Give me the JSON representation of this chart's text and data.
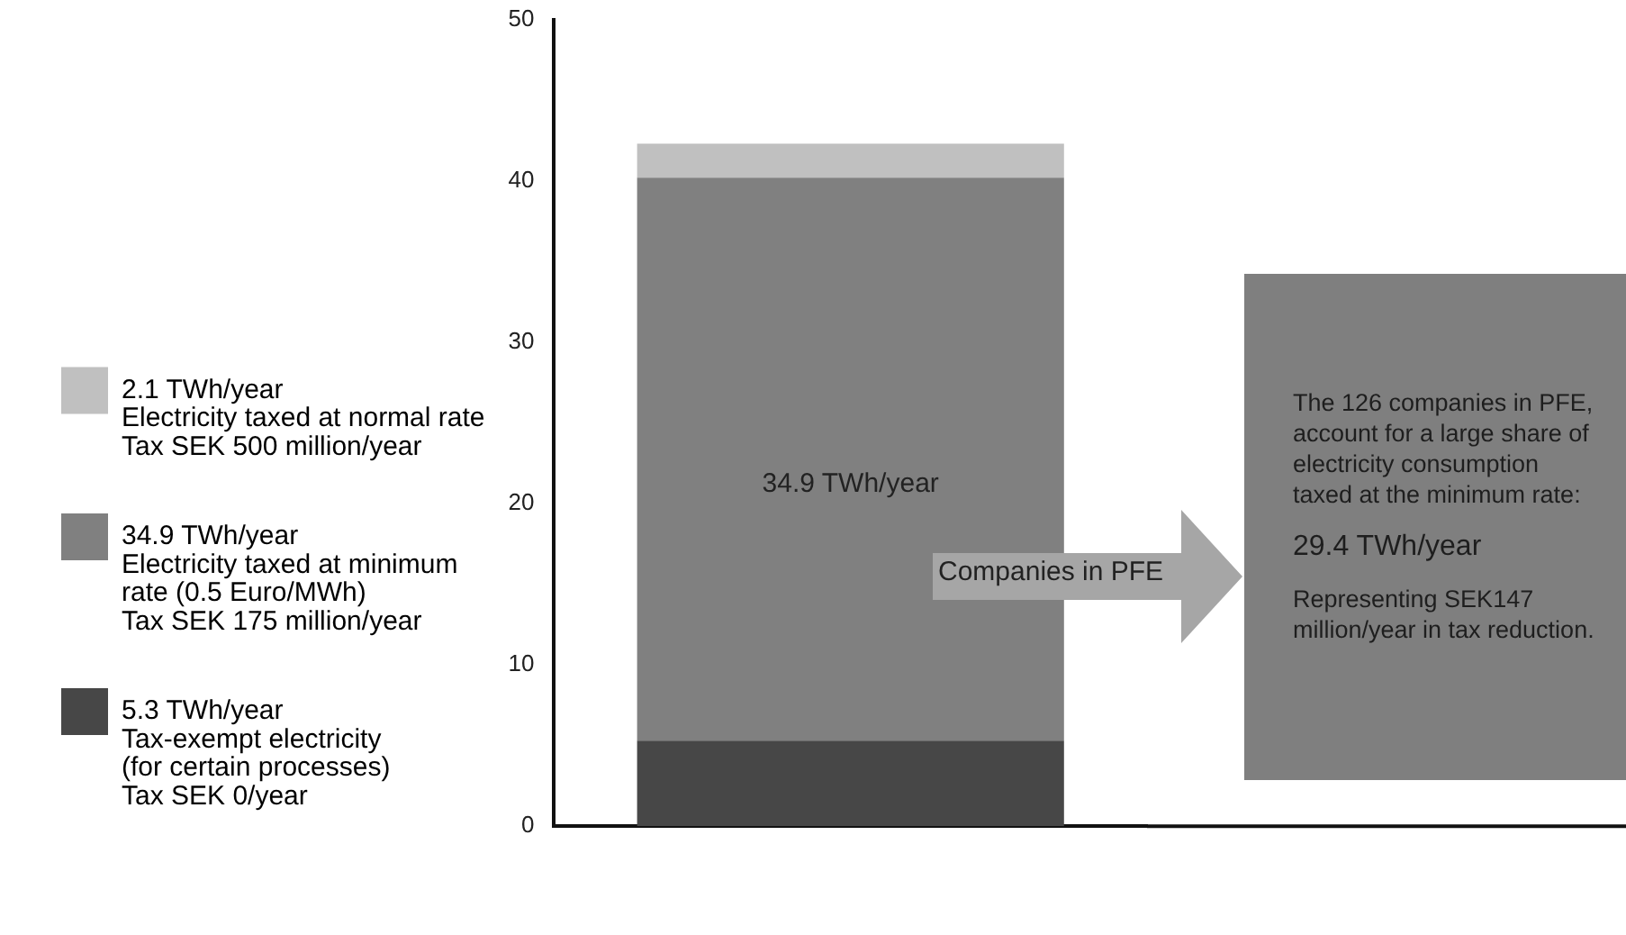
{
  "chart_data": {
    "type": "bar",
    "stacked": true,
    "categories": [
      null
    ],
    "series": [
      {
        "name": "5.3 TWh/year\nTax-exempt electricity\n(for certain processes)\nTax SEK 0/year",
        "color": "#474747",
        "values": [
          5.3
        ]
      },
      {
        "name": "34.9 TWh/year\nElectricity taxed at minimum\nrate (0.5 Euro/MWh)\nTax SEK 175 million/year",
        "color": "#808080",
        "values": [
          34.9
        ],
        "value_labels": [
          "34.9 TWh/year"
        ]
      },
      {
        "name": "2.1 TWh/year\nElectricity taxed at normal rate\nTax SEK 500 million/year",
        "color": "#c0c0c0",
        "values": [
          2.1
        ]
      }
    ],
    "ylim": [
      0,
      50
    ],
    "yticks": [
      0,
      10,
      20,
      30,
      40,
      50
    ],
    "grid": false,
    "legend": "left",
    "annotations": [
      "Companies in PFE",
      "The 126 companies in PFE, account for a large share of electricity consumption taxed at the minimum rate:",
      "29.4 TWh/year",
      "Representing SEK147 million/year in tax reduction."
    ]
  }
}
